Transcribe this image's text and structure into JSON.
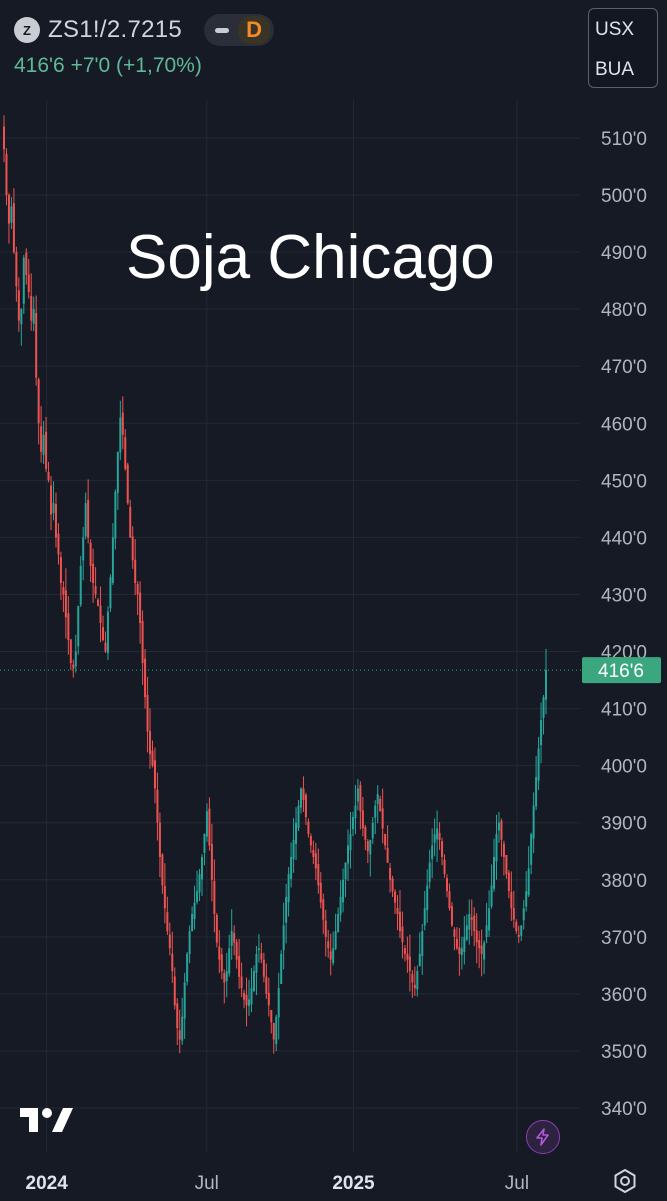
{
  "header": {
    "symbol_icon_letter": "Z",
    "symbol": "ZS1!/2.7215",
    "interval": "D",
    "last_price": "416'6",
    "change_text": "+7'0 (+1,70%)"
  },
  "currency": {
    "line1": "USX",
    "line2": "BUA"
  },
  "overlay_title": "Soja Chicago",
  "colors": {
    "background": "#161a25",
    "up": "#26a69a",
    "down": "#ef5350",
    "price_label": "#3aa77f",
    "interval": "#f28c28"
  },
  "chart_data": {
    "type": "candlestick",
    "price_axis": {
      "ticks": [
        340,
        350,
        360,
        370,
        380,
        390,
        400,
        410,
        420,
        430,
        440,
        450,
        460,
        470,
        480,
        490,
        500,
        510
      ],
      "tick_labels": [
        "340'0",
        "350'0",
        "360'0",
        "370'0",
        "380'0",
        "390'0",
        "400'0",
        "410'0",
        "420'0",
        "430'0",
        "440'0",
        "450'0",
        "460'0",
        "470'0",
        "480'0",
        "490'0",
        "500'0",
        "510'0"
      ],
      "range": [
        333,
        522
      ]
    },
    "time_axis": {
      "labels": [
        "2024",
        "Jul",
        "2025",
        "Jul"
      ],
      "bold": [
        true,
        false,
        true,
        false
      ],
      "label_positions": [
        0.07,
        0.31,
        0.53,
        0.775
      ]
    },
    "last_price_value": 416.75,
    "last_price_label": "416'6",
    "grid": true,
    "series_closes": [
      508,
      500,
      495,
      498,
      490,
      484,
      478,
      480,
      489,
      486,
      483,
      478,
      480,
      468,
      460,
      455,
      458,
      452,
      450,
      444,
      446,
      440,
      437,
      432,
      430,
      426,
      422,
      418,
      417,
      420,
      428,
      435,
      440,
      446,
      440,
      435,
      432,
      430,
      428,
      425,
      422,
      420,
      427,
      433,
      440,
      448,
      455,
      461,
      458,
      452,
      446,
      440,
      436,
      432,
      430,
      425,
      418,
      412,
      406,
      402,
      400,
      396,
      390,
      384,
      379,
      375,
      371,
      368,
      364,
      358,
      354,
      352,
      356,
      362,
      367,
      371,
      374,
      376,
      378,
      381,
      384,
      388,
      392,
      386,
      380,
      374,
      369,
      366,
      364,
      362,
      364,
      368,
      371,
      369,
      366,
      363,
      361,
      359,
      358,
      359,
      361,
      364,
      367,
      368,
      366,
      363,
      360,
      358,
      355,
      352,
      356,
      361,
      367,
      372,
      377,
      381,
      384,
      387,
      390,
      393,
      396,
      394,
      391,
      388,
      386,
      384,
      382,
      379,
      376,
      373,
      370,
      368,
      366,
      368,
      371,
      374,
      377,
      380,
      383,
      386,
      388,
      391,
      393,
      396,
      392,
      389,
      387,
      385,
      387,
      390,
      393,
      395,
      392,
      389,
      386,
      383,
      380,
      378,
      376,
      374,
      371,
      369,
      367,
      366,
      364,
      362,
      361,
      364,
      367,
      371,
      375,
      379,
      383,
      386,
      388,
      389,
      387,
      384,
      381,
      378,
      375,
      372,
      370,
      368,
      367,
      368,
      370,
      372,
      374,
      373,
      371,
      369,
      368,
      367,
      369,
      372,
      375,
      379,
      384,
      388,
      390,
      387,
      384,
      381,
      378,
      375,
      373,
      371,
      370,
      372,
      375,
      378,
      382,
      388,
      393,
      398,
      403,
      408,
      412,
      416.75
    ]
  }
}
